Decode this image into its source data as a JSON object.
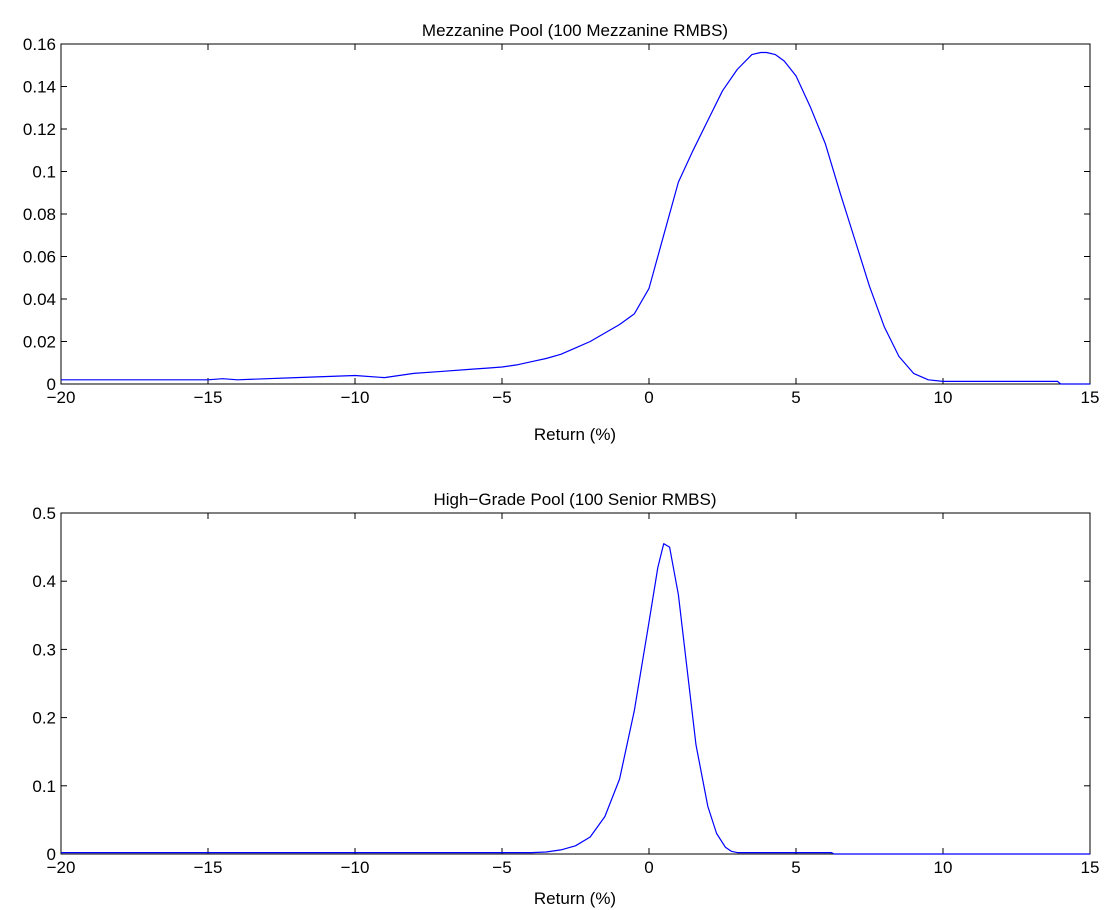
{
  "chart_data": [
    {
      "type": "line",
      "title": "Mezzanine Pool (100 Mezzanine RMBS)",
      "xlabel": "Return (%)",
      "ylabel": "",
      "xlim": [
        -20,
        15
      ],
      "ylim": [
        0,
        0.16
      ],
      "xticks": [
        -20,
        -15,
        -10,
        -5,
        0,
        5,
        10,
        15
      ],
      "xtick_labels": [
        "−20",
        "−15",
        "−10",
        "−5",
        "0",
        "5",
        "10",
        "15"
      ],
      "yticks": [
        0,
        0.02,
        0.04,
        0.06,
        0.08,
        0.1,
        0.12,
        0.14,
        0.16
      ],
      "ytick_labels": [
        "0",
        "0.02",
        "0.04",
        "0.06",
        "0.08",
        "0.1",
        "0.12",
        "0.14",
        "0.16"
      ],
      "grid": false,
      "line_color": "#0000ff",
      "series": [
        {
          "x": [
            -20,
            -15,
            -14.5,
            -14,
            -12,
            -10,
            -9,
            -8,
            -7,
            -6,
            -5.5,
            -5,
            -4.5,
            -4,
            -3.5,
            -3,
            -2.5,
            -2,
            -1.5,
            -1,
            -0.5,
            0,
            0.5,
            1,
            1.5,
            2,
            2.5,
            3,
            3.5,
            3.8,
            4,
            4.3,
            4.6,
            5,
            5.5,
            6,
            6.5,
            7,
            7.5,
            8,
            8.5,
            9,
            9.5,
            10,
            12,
            13.9,
            14,
            15
          ],
          "y": [
            0.002,
            0.002,
            0.0025,
            0.002,
            0.003,
            0.004,
            0.003,
            0.005,
            0.006,
            0.007,
            0.0075,
            0.008,
            0.009,
            0.0105,
            0.012,
            0.014,
            0.017,
            0.02,
            0.024,
            0.028,
            0.033,
            0.045,
            0.07,
            0.095,
            0.11,
            0.124,
            0.138,
            0.148,
            0.155,
            0.156,
            0.156,
            0.155,
            0.152,
            0.145,
            0.13,
            0.113,
            0.09,
            0.068,
            0.046,
            0.027,
            0.013,
            0.005,
            0.002,
            0.0012,
            0.0012,
            0.0012,
            0.0,
            0.0
          ]
        }
      ]
    },
    {
      "type": "line",
      "title": "High−Grade Pool (100 Senior RMBS)",
      "xlabel": "Return (%)",
      "ylabel": "",
      "xlim": [
        -20,
        15
      ],
      "ylim": [
        0,
        0.5
      ],
      "xticks": [
        -20,
        -15,
        -10,
        -5,
        0,
        5,
        10,
        15
      ],
      "xtick_labels": [
        "−20",
        "−15",
        "−10",
        "−5",
        "0",
        "5",
        "10",
        "15"
      ],
      "yticks": [
        0,
        0.1,
        0.2,
        0.3,
        0.4,
        0.5
      ],
      "ytick_labels": [
        "0",
        "0.1",
        "0.2",
        "0.3",
        "0.4",
        "0.5"
      ],
      "grid": false,
      "line_color": "#0000ff",
      "series": [
        {
          "x": [
            -20,
            -5,
            -4,
            -3.5,
            -3,
            -2.5,
            -2,
            -1.5,
            -1,
            -0.5,
            0,
            0.3,
            0.5,
            0.7,
            1,
            1.3,
            1.6,
            2,
            2.3,
            2.6,
            2.8,
            3,
            6.2,
            6.3,
            15
          ],
          "y": [
            0.002,
            0.002,
            0.002,
            0.003,
            0.006,
            0.012,
            0.025,
            0.055,
            0.11,
            0.21,
            0.34,
            0.42,
            0.455,
            0.45,
            0.38,
            0.27,
            0.16,
            0.07,
            0.03,
            0.01,
            0.004,
            0.002,
            0.002,
            0.0,
            0.0
          ]
        }
      ]
    }
  ]
}
